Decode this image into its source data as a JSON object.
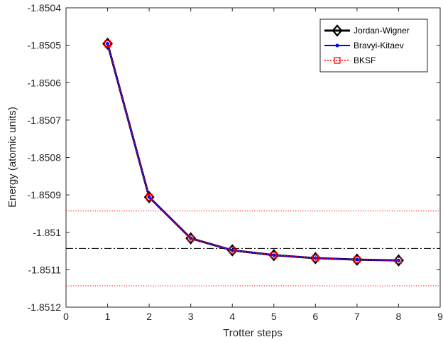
{
  "chart_data": {
    "type": "line",
    "xlabel": "Trotter steps",
    "ylabel": "Energy (atomic units)",
    "xlim": [
      0,
      9
    ],
    "ylim": [
      -1.8512,
      -1.8504
    ],
    "xticks": [
      "0",
      "1",
      "2",
      "3",
      "4",
      "5",
      "6",
      "7",
      "8",
      "9"
    ],
    "yticks": [
      "-1.8504",
      "-1.8505",
      "-1.8506",
      "-1.8507",
      "-1.8508",
      "-1.8509",
      "-1.851",
      "-1.8511",
      "-1.8512"
    ],
    "grid": false,
    "legend_position": "top-right",
    "x": [
      1,
      2,
      3,
      4,
      5,
      6,
      7,
      8
    ],
    "series": [
      {
        "name": "Jordan-Wigner",
        "color": "#000000",
        "marker": "diamond",
        "line": "solid",
        "values": [
          -1.850496,
          -1.850906,
          -1.851016,
          -1.851048,
          -1.851061,
          -1.851069,
          -1.851073,
          -1.851075
        ]
      },
      {
        "name": "Bravyi-Kitaev",
        "color": "#0000ff",
        "marker": "dot",
        "line": "solid",
        "values": [
          -1.850496,
          -1.850906,
          -1.851016,
          -1.851048,
          -1.851061,
          -1.851069,
          -1.851073,
          -1.851075
        ]
      },
      {
        "name": "BKSF",
        "color": "#ff0000",
        "marker": "square",
        "line": "dotted",
        "values": [
          -1.850496,
          -1.850906,
          -1.851016,
          -1.851048,
          -1.851061,
          -1.851069,
          -1.851073,
          -1.851075
        ]
      }
    ],
    "reference_lines": [
      {
        "y": -1.851043,
        "color": "#000000",
        "style": "dashdot"
      },
      {
        "y": -1.850943,
        "color": "#ff0000",
        "style": "dotted"
      },
      {
        "y": -1.851143,
        "color": "#ff0000",
        "style": "dotted"
      }
    ]
  }
}
